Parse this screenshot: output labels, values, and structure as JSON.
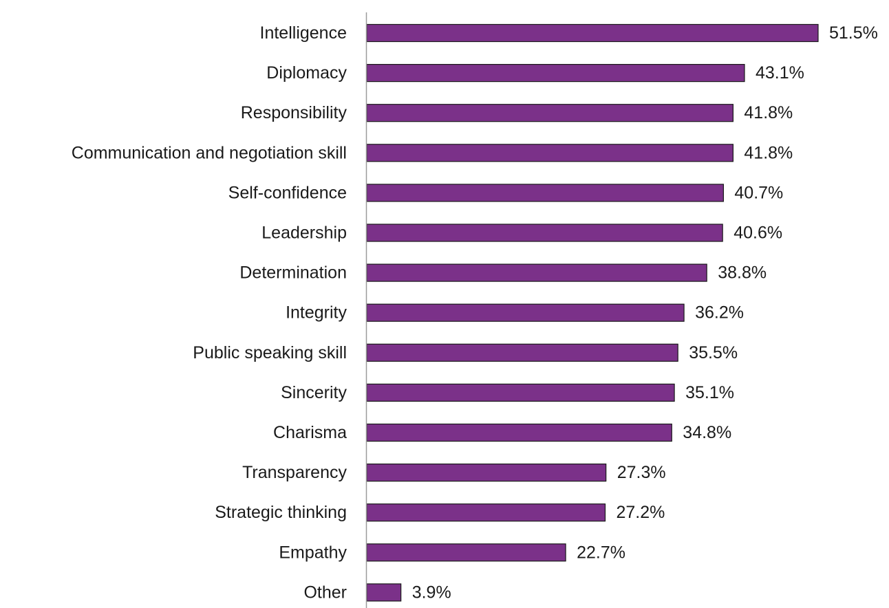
{
  "chart_data": {
    "type": "bar",
    "orientation": "horizontal",
    "categories": [
      "Intelligence",
      "Diplomacy",
      "Responsibility",
      "Communication and negotiation skill",
      "Self-confidence",
      "Leadership",
      "Determination",
      "Integrity",
      "Public speaking skill",
      "Sincerity",
      "Charisma",
      "Transparency",
      "Strategic thinking",
      "Empathy",
      "Other"
    ],
    "values": [
      51.5,
      43.1,
      41.8,
      41.8,
      40.7,
      40.6,
      38.8,
      36.2,
      35.5,
      35.1,
      34.8,
      27.3,
      27.2,
      22.7,
      3.9
    ],
    "value_labels": [
      "51.5%",
      "43.1%",
      "41.8%",
      "41.8%",
      "40.7%",
      "40.6%",
      "38.8%",
      "36.2%",
      "35.5%",
      "35.1%",
      "34.8%",
      "27.3%",
      "27.2%",
      "22.7%",
      "3.9%"
    ],
    "unit": "%",
    "xlim": [
      0,
      51.5
    ],
    "grid": false,
    "legend": "none",
    "colors": {
      "bar_fill": "#7b3189",
      "bar_stroke": "#1a1a1a",
      "axis": "#9a9a9a",
      "text": "#1a1a1a"
    }
  }
}
